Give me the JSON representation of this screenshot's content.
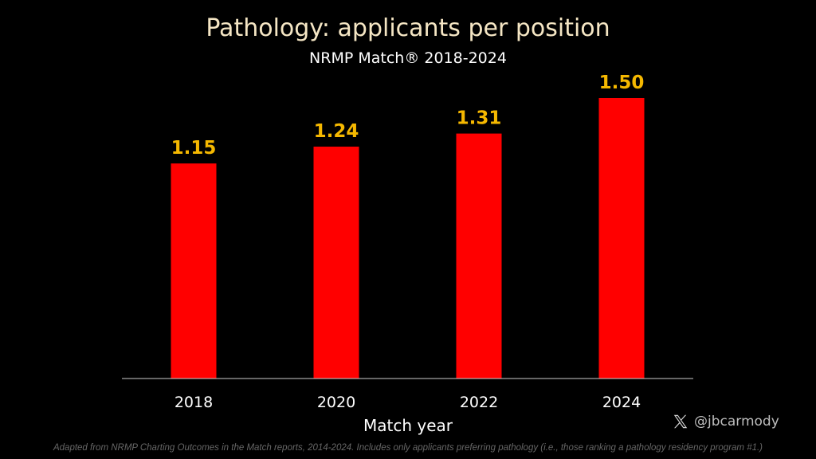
{
  "title": "Pathology: applicants per position",
  "subtitle": "NRMP Match® 2018-2024",
  "handle": "@jbcarmody",
  "footnote": "Adapted from NRMP Charting Outcomes in the Match reports, 2014-2024. Includes only applicants preferring pathology (i.e., those ranking a pathology residency program #1.)",
  "colors": {
    "bar": "#ff0000",
    "value_label": "#f5b800",
    "background": "#000000"
  },
  "icons": {
    "social": "x-logo-icon"
  },
  "chart_data": {
    "type": "bar",
    "title": "Pathology: applicants per position",
    "subtitle": "NRMP Match® 2018-2024",
    "xlabel": "Match year",
    "ylabel": "",
    "categories": [
      "2018",
      "2020",
      "2022",
      "2024"
    ],
    "values": [
      1.15,
      1.24,
      1.31,
      1.5
    ],
    "value_labels": [
      "1.15",
      "1.24",
      "1.31",
      "1.50"
    ],
    "ylim": [
      0,
      1.5
    ],
    "grid": false,
    "legend": "none"
  }
}
